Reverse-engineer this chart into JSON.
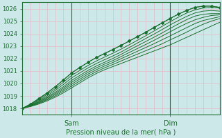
{
  "xlabel": "Pression niveau de la mer( hPa )",
  "ylim": [
    1017.5,
    1026.5
  ],
  "xlim": [
    0,
    96
  ],
  "yticks": [
    1018,
    1019,
    1020,
    1021,
    1022,
    1023,
    1024,
    1025,
    1026
  ],
  "xtick_positions": [
    24,
    72
  ],
  "xtick_labels": [
    "Sam",
    "Dim"
  ],
  "background_color": "#cce8e8",
  "grid_color": "#e8b8c8",
  "line_color": "#1a6e2e",
  "axis_color": "#1a6e2e",
  "text_color": "#1a6e2e",
  "vline_positions": [
    24,
    72
  ],
  "ensemble_lines": [
    [
      1018.0,
      1018.15,
      1018.35,
      1018.6,
      1018.9,
      1019.25,
      1019.65,
      1020.05,
      1020.45,
      1020.8,
      1021.1,
      1021.35,
      1021.6,
      1021.85,
      1022.1,
      1022.35,
      1022.6,
      1022.85,
      1023.1,
      1023.4,
      1023.7,
      1024.0,
      1024.3,
      1024.6,
      1024.9
    ],
    [
      1018.0,
      1018.18,
      1018.4,
      1018.68,
      1019.0,
      1019.38,
      1019.8,
      1020.2,
      1020.6,
      1020.95,
      1021.25,
      1021.52,
      1021.8,
      1022.08,
      1022.35,
      1022.62,
      1022.9,
      1023.18,
      1023.5,
      1023.8,
      1024.12,
      1024.45,
      1024.75,
      1025.0,
      1025.2
    ],
    [
      1018.0,
      1018.2,
      1018.45,
      1018.75,
      1019.1,
      1019.5,
      1019.95,
      1020.35,
      1020.75,
      1021.1,
      1021.4,
      1021.68,
      1021.98,
      1022.28,
      1022.58,
      1022.88,
      1023.18,
      1023.5,
      1023.82,
      1024.15,
      1024.48,
      1024.8,
      1025.05,
      1025.2,
      1025.35
    ],
    [
      1018.0,
      1018.22,
      1018.5,
      1018.83,
      1019.2,
      1019.62,
      1020.1,
      1020.5,
      1020.9,
      1021.25,
      1021.55,
      1021.83,
      1022.15,
      1022.48,
      1022.8,
      1023.12,
      1023.45,
      1023.8,
      1024.15,
      1024.5,
      1024.82,
      1025.1,
      1025.3,
      1025.45,
      1025.5
    ],
    [
      1018.0,
      1018.25,
      1018.55,
      1018.9,
      1019.3,
      1019.74,
      1020.25,
      1020.65,
      1021.05,
      1021.4,
      1021.7,
      1022.0,
      1022.33,
      1022.68,
      1023.02,
      1023.36,
      1023.7,
      1024.05,
      1024.42,
      1024.78,
      1025.12,
      1025.4,
      1025.55,
      1025.6,
      1025.6
    ],
    [
      1018.0,
      1018.28,
      1018.62,
      1019.0,
      1019.44,
      1019.92,
      1020.45,
      1020.85,
      1021.25,
      1021.6,
      1021.9,
      1022.2,
      1022.52,
      1022.88,
      1023.24,
      1023.6,
      1023.95,
      1024.32,
      1024.7,
      1025.05,
      1025.38,
      1025.65,
      1025.8,
      1025.85,
      1025.8
    ],
    [
      1018.0,
      1018.32,
      1018.7,
      1019.12,
      1019.58,
      1020.1,
      1020.65,
      1021.05,
      1021.45,
      1021.8,
      1022.12,
      1022.42,
      1022.75,
      1023.1,
      1023.46,
      1023.82,
      1024.2,
      1024.58,
      1024.96,
      1025.32,
      1025.65,
      1025.9,
      1026.05,
      1026.1,
      1026.05
    ],
    [
      1018.0,
      1018.35,
      1018.78,
      1019.24,
      1019.74,
      1020.28,
      1020.85,
      1021.28,
      1021.7,
      1022.08,
      1022.4,
      1022.72,
      1023.05,
      1023.4,
      1023.75,
      1024.1,
      1024.48,
      1024.85,
      1025.22,
      1025.56,
      1025.86,
      1026.1,
      1026.2,
      1026.2,
      1026.1
    ]
  ],
  "marker_line": [
    1018.0,
    1018.35,
    1018.78,
    1019.24,
    1019.74,
    1020.28,
    1020.85,
    1021.28,
    1021.7,
    1022.08,
    1022.4,
    1022.72,
    1023.05,
    1023.4,
    1023.75,
    1024.1,
    1024.48,
    1024.85,
    1025.22,
    1025.56,
    1025.86,
    1026.1,
    1026.2,
    1026.2,
    1026.1
  ],
  "x_points": [
    0,
    4,
    8,
    12,
    16,
    20,
    24,
    28,
    32,
    36,
    40,
    44,
    48,
    52,
    56,
    60,
    64,
    68,
    72,
    76,
    80,
    84,
    88,
    92,
    96
  ]
}
